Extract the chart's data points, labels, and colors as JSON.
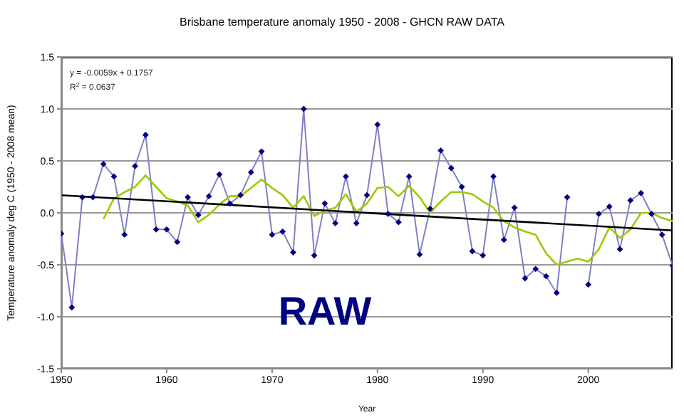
{
  "chart_data": {
    "type": "line",
    "title": "Brisbane temperature anomaly 1950 - 2008 - GHCN RAW DATA",
    "xlabel": "Year",
    "ylabel": "Temperature anomaly deg C (1950 - 2008 mean)",
    "xlim": [
      1950,
      2008
    ],
    "xticks": [
      1950,
      1960,
      1970,
      1980,
      1990,
      2000
    ],
    "ylim": [
      -1.5,
      1.5
    ],
    "yticks": [
      -1.5,
      {
        "value": -1,
        "label": "-1.0"
      },
      -0.5,
      {
        "value": 0,
        "label": "0.0"
      },
      0.5,
      {
        "value": 1,
        "label": "1.0"
      },
      1.5
    ],
    "grid": "y",
    "legend": false,
    "line_style": "solid",
    "annotations": [
      "y = -0.0059x + 0.1757",
      "R$^{2}$ = 0.0637",
      "RAW"
    ],
    "series": [
      {
        "color": "#8080c8",
        "marker": "diamond",
        "x": [
          1950,
          1951,
          1952,
          1953,
          1954,
          1955,
          1956,
          1957,
          1958,
          1959,
          1960,
          1961,
          1962,
          1963,
          1964,
          1965,
          1966,
          1967,
          1968,
          1969,
          1970,
          1971,
          1972,
          1973,
          1974,
          1975,
          1976,
          1977,
          1978,
          1979,
          1980,
          1981,
          1982,
          1983,
          1984,
          1985,
          1986,
          1987,
          1988,
          1989,
          1990,
          1991,
          1992,
          1993,
          1994,
          1995,
          1996,
          1997,
          1998,
          1999,
          2000,
          2001,
          2002,
          2003,
          2004,
          2005,
          2006,
          2007,
          2008
        ],
        "values": [
          -0.2,
          -0.91,
          0.15,
          0.15,
          0.47,
          0.35,
          -0.21,
          0.45,
          0.75,
          -0.16,
          -0.16,
          -0.28,
          0.15,
          -0.02,
          0.16,
          0.37,
          0.09,
          0.17,
          0.39,
          0.59,
          -0.21,
          -0.18,
          -0.38,
          1.0,
          -0.41,
          0.09,
          -0.1,
          0.35,
          -0.1,
          0.17,
          0.85,
          -0.01,
          -0.09,
          0.35,
          -0.4,
          0.04,
          0.6,
          0.43,
          0.25,
          -0.37,
          -0.41,
          0.35,
          -0.26,
          0.05,
          -0.63,
          -0.54,
          -0.61,
          -0.77,
          0.15,
          null,
          -0.69,
          -0.01,
          0.06,
          -0.35,
          0.12,
          0.19,
          -0.01,
          -0.21,
          -0.51
        ]
      },
      {
        "color": "#99cc00",
        "marker": "none",
        "x": [
          1954,
          1955,
          1956,
          1957,
          1958,
          1959,
          1960,
          1961,
          1962,
          1963,
          1964,
          1965,
          1966,
          1967,
          1968,
          1969,
          1970,
          1971,
          1972,
          1973,
          1974,
          1975,
          1976,
          1977,
          1978,
          1979,
          1980,
          1981,
          1982,
          1983,
          1984,
          1985,
          1986,
          1987,
          1988,
          1989,
          1990,
          1991,
          1992,
          1993,
          1994,
          1995,
          1996,
          1997,
          1998,
          1999,
          2000,
          2001,
          2002,
          2003,
          2004,
          2005,
          2006,
          2007,
          2008
        ],
        "values": [
          -0.06,
          0.14,
          0.2,
          0.25,
          0.36,
          0.25,
          0.14,
          0.11,
          0.07,
          -0.09,
          -0.02,
          0.08,
          0.16,
          0.16,
          0.24,
          0.32,
          0.24,
          0.17,
          0.05,
          0.16,
          -0.03,
          0.02,
          0.05,
          0.18,
          0.01,
          0.09,
          0.24,
          0.25,
          0.16,
          0.26,
          0.15,
          0.0,
          0.11,
          0.2,
          0.2,
          0.18,
          0.11,
          0.05,
          -0.08,
          -0.14,
          -0.18,
          -0.21,
          -0.39,
          -0.5,
          -0.47,
          -0.44,
          -0.47,
          -0.35,
          -0.14,
          -0.24,
          -0.16,
          0.0,
          0.0,
          -0.05,
          -0.08
        ]
      },
      {
        "color": "#000000",
        "marker": "none",
        "x": [
          1950,
          2008
        ],
        "values": [
          0.17,
          -0.17
        ]
      }
    ]
  }
}
